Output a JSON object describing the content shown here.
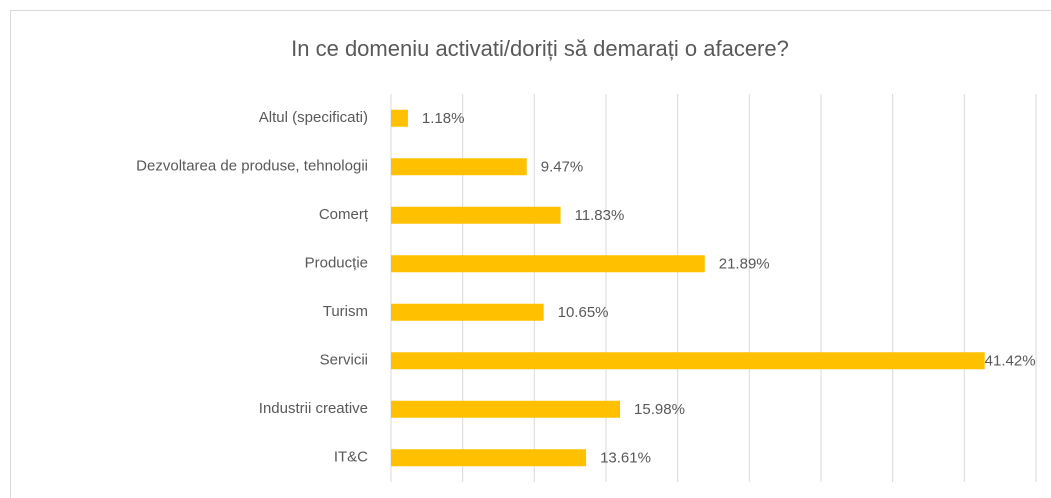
{
  "chart_data": {
    "type": "hbar",
    "title": "In ce domeniu activati/doriți să demarați o afacere?",
    "categories": [
      "Altul (specificati)",
      "Dezvoltarea de produse, tehnologii",
      "Comerț",
      "Producție",
      "Turism",
      "Servicii",
      "Industrii creative",
      "IT&C"
    ],
    "values": [
      1.18,
      9.47,
      11.83,
      21.89,
      10.65,
      41.42,
      15.98,
      13.61
    ],
    "value_labels": [
      "1.18%",
      "9.47%",
      "11.83%",
      "21.89%",
      "10.65%",
      "41.42%",
      "15.98%",
      "13.61%"
    ],
    "color": "#ffc000",
    "xlim": [
      0,
      45
    ],
    "xticks": [
      0,
      5,
      10,
      15,
      20,
      25,
      30,
      35,
      40,
      45
    ],
    "grid": true
  }
}
